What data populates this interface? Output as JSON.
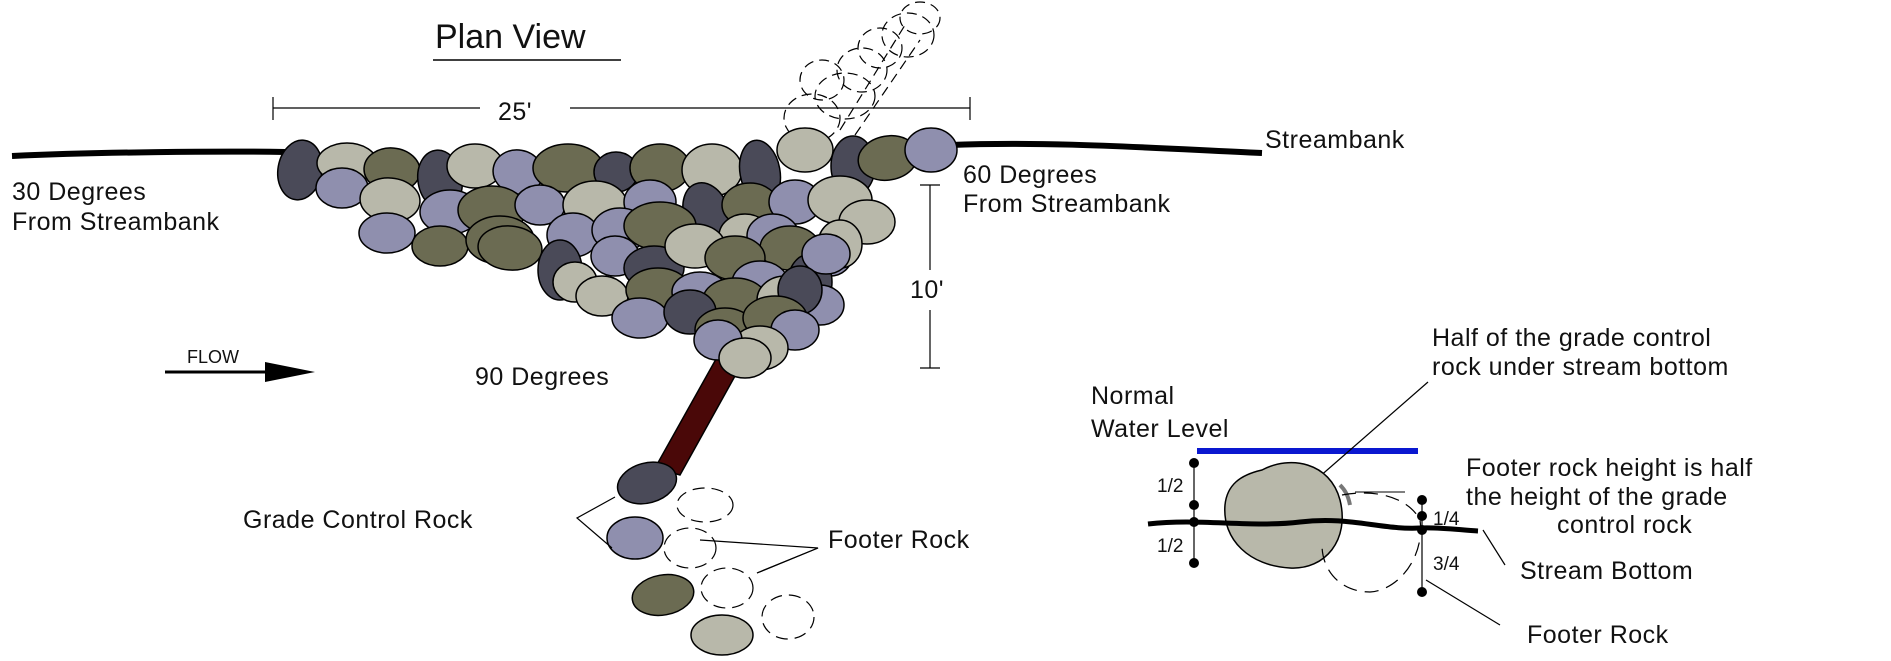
{
  "title": "Plan View",
  "streambank_label": "Streambank",
  "angle_left": [
    "30 Degrees",
    "From Streambank"
  ],
  "angle_right": [
    "60 Degrees",
    "From Streambank"
  ],
  "angle_bottom": "90 Degrees",
  "width_dimension": "25'",
  "depth_dimension": "10'",
  "flow_label": "FLOW",
  "grade_control_label": "Grade Control Rock",
  "footer_rock_label": "Footer Rock",
  "section": {
    "normal_water_level": [
      "Normal",
      "Water Level"
    ],
    "half_rock_note": [
      "Half of the grade control",
      "rock under stream bottom"
    ],
    "footer_height_note": [
      "Footer rock height is half",
      "the height of the grade",
      "control rock"
    ],
    "stream_bottom_label": "Stream Bottom",
    "footer_rock_label": "Footer Rock",
    "fraction_upper_left": "1/2",
    "fraction_lower_left": "1/2",
    "fraction_upper_right": "1/4",
    "fraction_lower_right": "3/4"
  },
  "colors": {
    "rock_olive": "#6b6b52",
    "rock_light": "#b8b8aa",
    "rock_lavender": "#8f8fae",
    "rock_dark": "#4a4a58",
    "connector": "#4a0808",
    "water_level": "#0a18d0",
    "line": "#000000"
  }
}
